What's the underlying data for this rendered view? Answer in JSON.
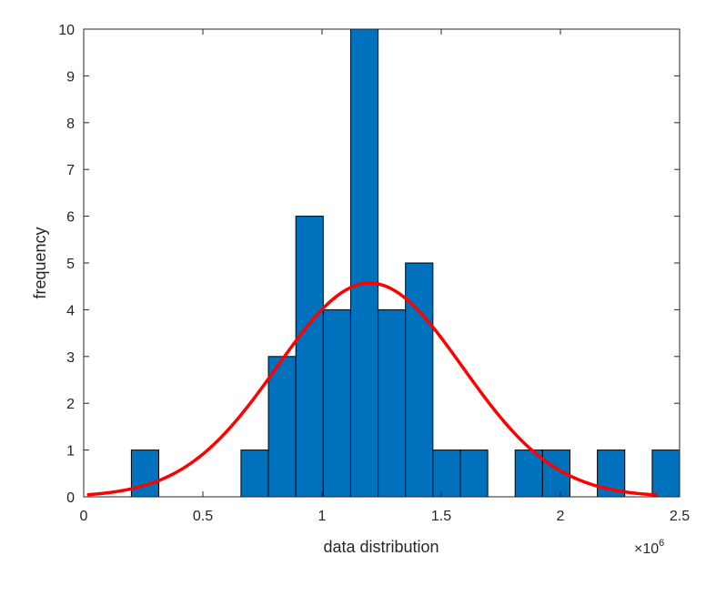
{
  "chart_data": {
    "type": "bar",
    "subtype": "histogram-with-fit",
    "title": "",
    "xlabel": "data distribution",
    "ylabel": "frequency",
    "x_exponent_base": "×10",
    "x_exponent_power": "6",
    "xlim": [
      0,
      2.5
    ],
    "ylim": [
      0,
      10
    ],
    "x_ticks": [
      "0",
      "0.5",
      "1",
      "1.5",
      "2",
      "2.5"
    ],
    "y_ticks": [
      "0",
      "1",
      "2",
      "3",
      "4",
      "5",
      "6",
      "7",
      "8",
      "9",
      "10"
    ],
    "grid": false,
    "bar_color": "#0072BD",
    "bar_edge_color": "#000000",
    "fit_color": "#FF0000",
    "bins": [
      {
        "left": 0.2,
        "right": 0.315,
        "count": 1
      },
      {
        "left": 0.66,
        "right": 0.775,
        "count": 1
      },
      {
        "left": 0.775,
        "right": 0.89,
        "count": 3
      },
      {
        "left": 0.89,
        "right": 1.005,
        "count": 6
      },
      {
        "left": 1.005,
        "right": 1.12,
        "count": 4
      },
      {
        "left": 1.12,
        "right": 1.235,
        "count": 10
      },
      {
        "left": 1.235,
        "right": 1.35,
        "count": 4
      },
      {
        "left": 1.35,
        "right": 1.465,
        "count": 5
      },
      {
        "left": 1.465,
        "right": 1.58,
        "count": 1
      },
      {
        "left": 1.58,
        "right": 1.695,
        "count": 1
      },
      {
        "left": 1.81,
        "right": 1.925,
        "count": 1
      },
      {
        "left": 1.925,
        "right": 2.04,
        "count": 1
      },
      {
        "left": 2.155,
        "right": 2.27,
        "count": 1
      },
      {
        "left": 2.385,
        "right": 2.5,
        "count": 1
      }
    ],
    "fit_curve": {
      "type": "normal",
      "mean": 1.2,
      "peak": 4.57,
      "sigma": 0.39,
      "x_range": [
        0.02,
        2.4
      ]
    }
  }
}
